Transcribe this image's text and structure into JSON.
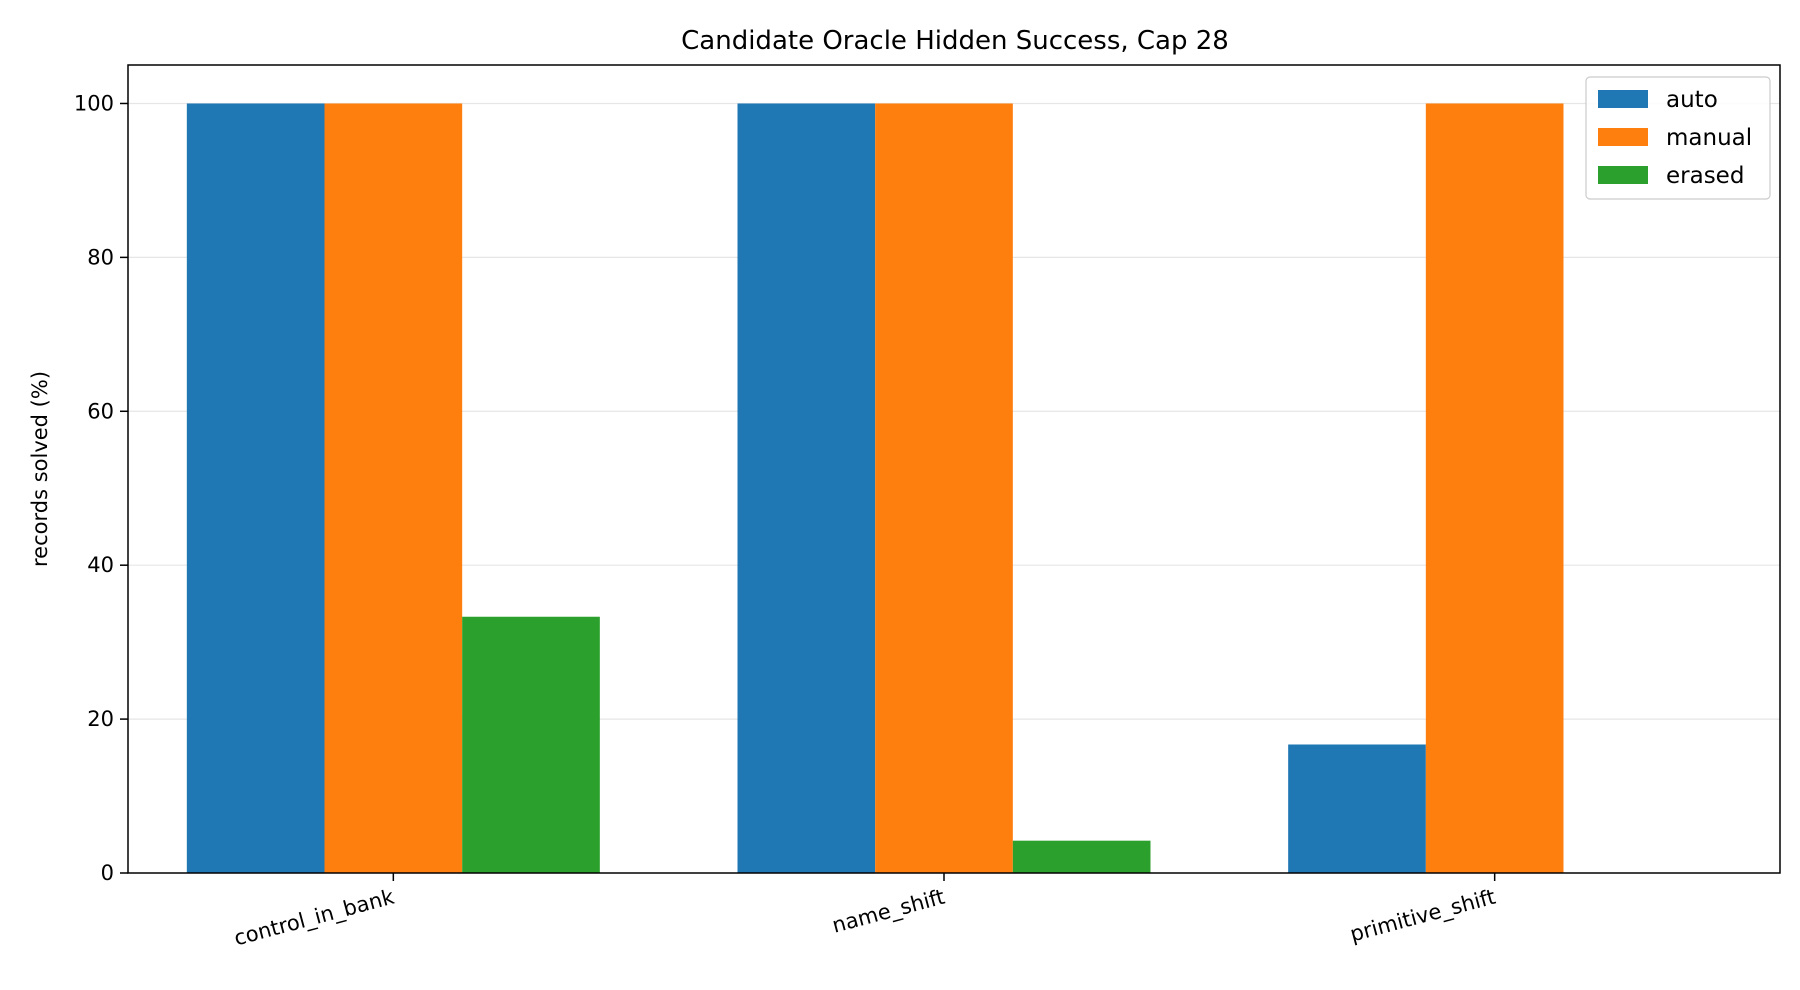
{
  "chart_data": {
    "type": "bar",
    "title": "Candidate Oracle Hidden Success, Cap 28",
    "xlabel": "",
    "ylabel": "records solved (%)",
    "categories": [
      "control_in_bank",
      "name_shift",
      "primitive_shift"
    ],
    "series": [
      {
        "name": "auto",
        "color": "#1f77b4",
        "values": [
          100,
          100,
          16.7
        ]
      },
      {
        "name": "manual",
        "color": "#ff7f0e",
        "values": [
          100,
          100,
          100
        ]
      },
      {
        "name": "erased",
        "color": "#2ca02c",
        "values": [
          33.3,
          4.2,
          0
        ]
      }
    ],
    "ylim": [
      0,
      105
    ],
    "yticks": [
      0,
      20,
      40,
      60,
      80,
      100
    ],
    "grid": "y",
    "legend_position": "top-right"
  }
}
